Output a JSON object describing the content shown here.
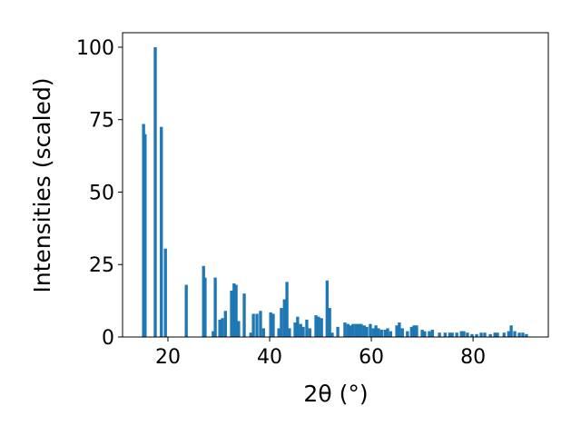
{
  "chart_data": {
    "type": "bar",
    "x_label": "2θ (°)",
    "y_label": "Intensities (scaled)",
    "color": "#1f77b4",
    "xlim": [
      11.07,
      94.8
    ],
    "xticks": [
      20,
      40,
      60,
      80
    ],
    "ylim": [
      0,
      105
    ],
    "yticks": [
      0,
      25,
      50,
      75,
      100
    ],
    "x": [
      15.2,
      15.5,
      17.5,
      18.7,
      19.5,
      23.6,
      27.0,
      27.3,
      28.9,
      29.3,
      30.2,
      30.7,
      31.3,
      32.5,
      33.0,
      33.4,
      33.9,
      35.0,
      36.3,
      36.8,
      37.5,
      38.2,
      38.8,
      40.2,
      40.7,
      41.8,
      42.3,
      42.9,
      43.4,
      43.9,
      45.0,
      45.5,
      46.1,
      46.6,
      47.3,
      47.9,
      49.1,
      49.6,
      50.2,
      51.3,
      51.8,
      52.3,
      53.4,
      54.8,
      55.4,
      55.9,
      56.4,
      57.0,
      57.5,
      58.0,
      58.6,
      59.1,
      59.8,
      60.4,
      60.9,
      61.4,
      62.0,
      62.7,
      63.2,
      63.8,
      65.0,
      65.5,
      66.1,
      67.1,
      67.9,
      68.4,
      68.9,
      70.0,
      70.5,
      71.4,
      72.0,
      73.4,
      74.5,
      75.4,
      75.9,
      76.8,
      77.7,
      78.2,
      78.9,
      79.8,
      80.7,
      81.6,
      82.3,
      83.4,
      84.3,
      84.8,
      86.1,
      87.0,
      87.5,
      88.2,
      89.1,
      89.8,
      90.5
    ],
    "values": [
      73.5,
      70,
      100,
      72.5,
      30.5,
      18,
      24.5,
      20.5,
      2,
      20.5,
      6,
      6.5,
      9,
      16,
      18.5,
      18,
      5.5,
      15,
      1.5,
      8,
      8,
      9,
      3,
      8.5,
      8,
      3,
      10,
      13,
      19,
      3,
      5,
      7,
      4.5,
      3.5,
      6,
      3,
      7.5,
      7,
      6.5,
      19.5,
      10,
      1.5,
      3.5,
      5,
      4.5,
      4,
      4.5,
      4.5,
      4.5,
      4.5,
      4,
      3.5,
      4.5,
      3,
      4,
      3,
      2.5,
      2.5,
      3,
      2,
      4,
      5,
      3,
      2,
      3.5,
      4,
      4,
      2.5,
      2,
      2,
      2.5,
      1.5,
      1.5,
      1.5,
      1.5,
      1.5,
      2,
      2,
      1.5,
      1,
      1,
      1.5,
      1.5,
      1,
      1.5,
      1.5,
      1.5,
      2,
      4,
      2,
      1.5,
      1.5,
      1
    ]
  }
}
